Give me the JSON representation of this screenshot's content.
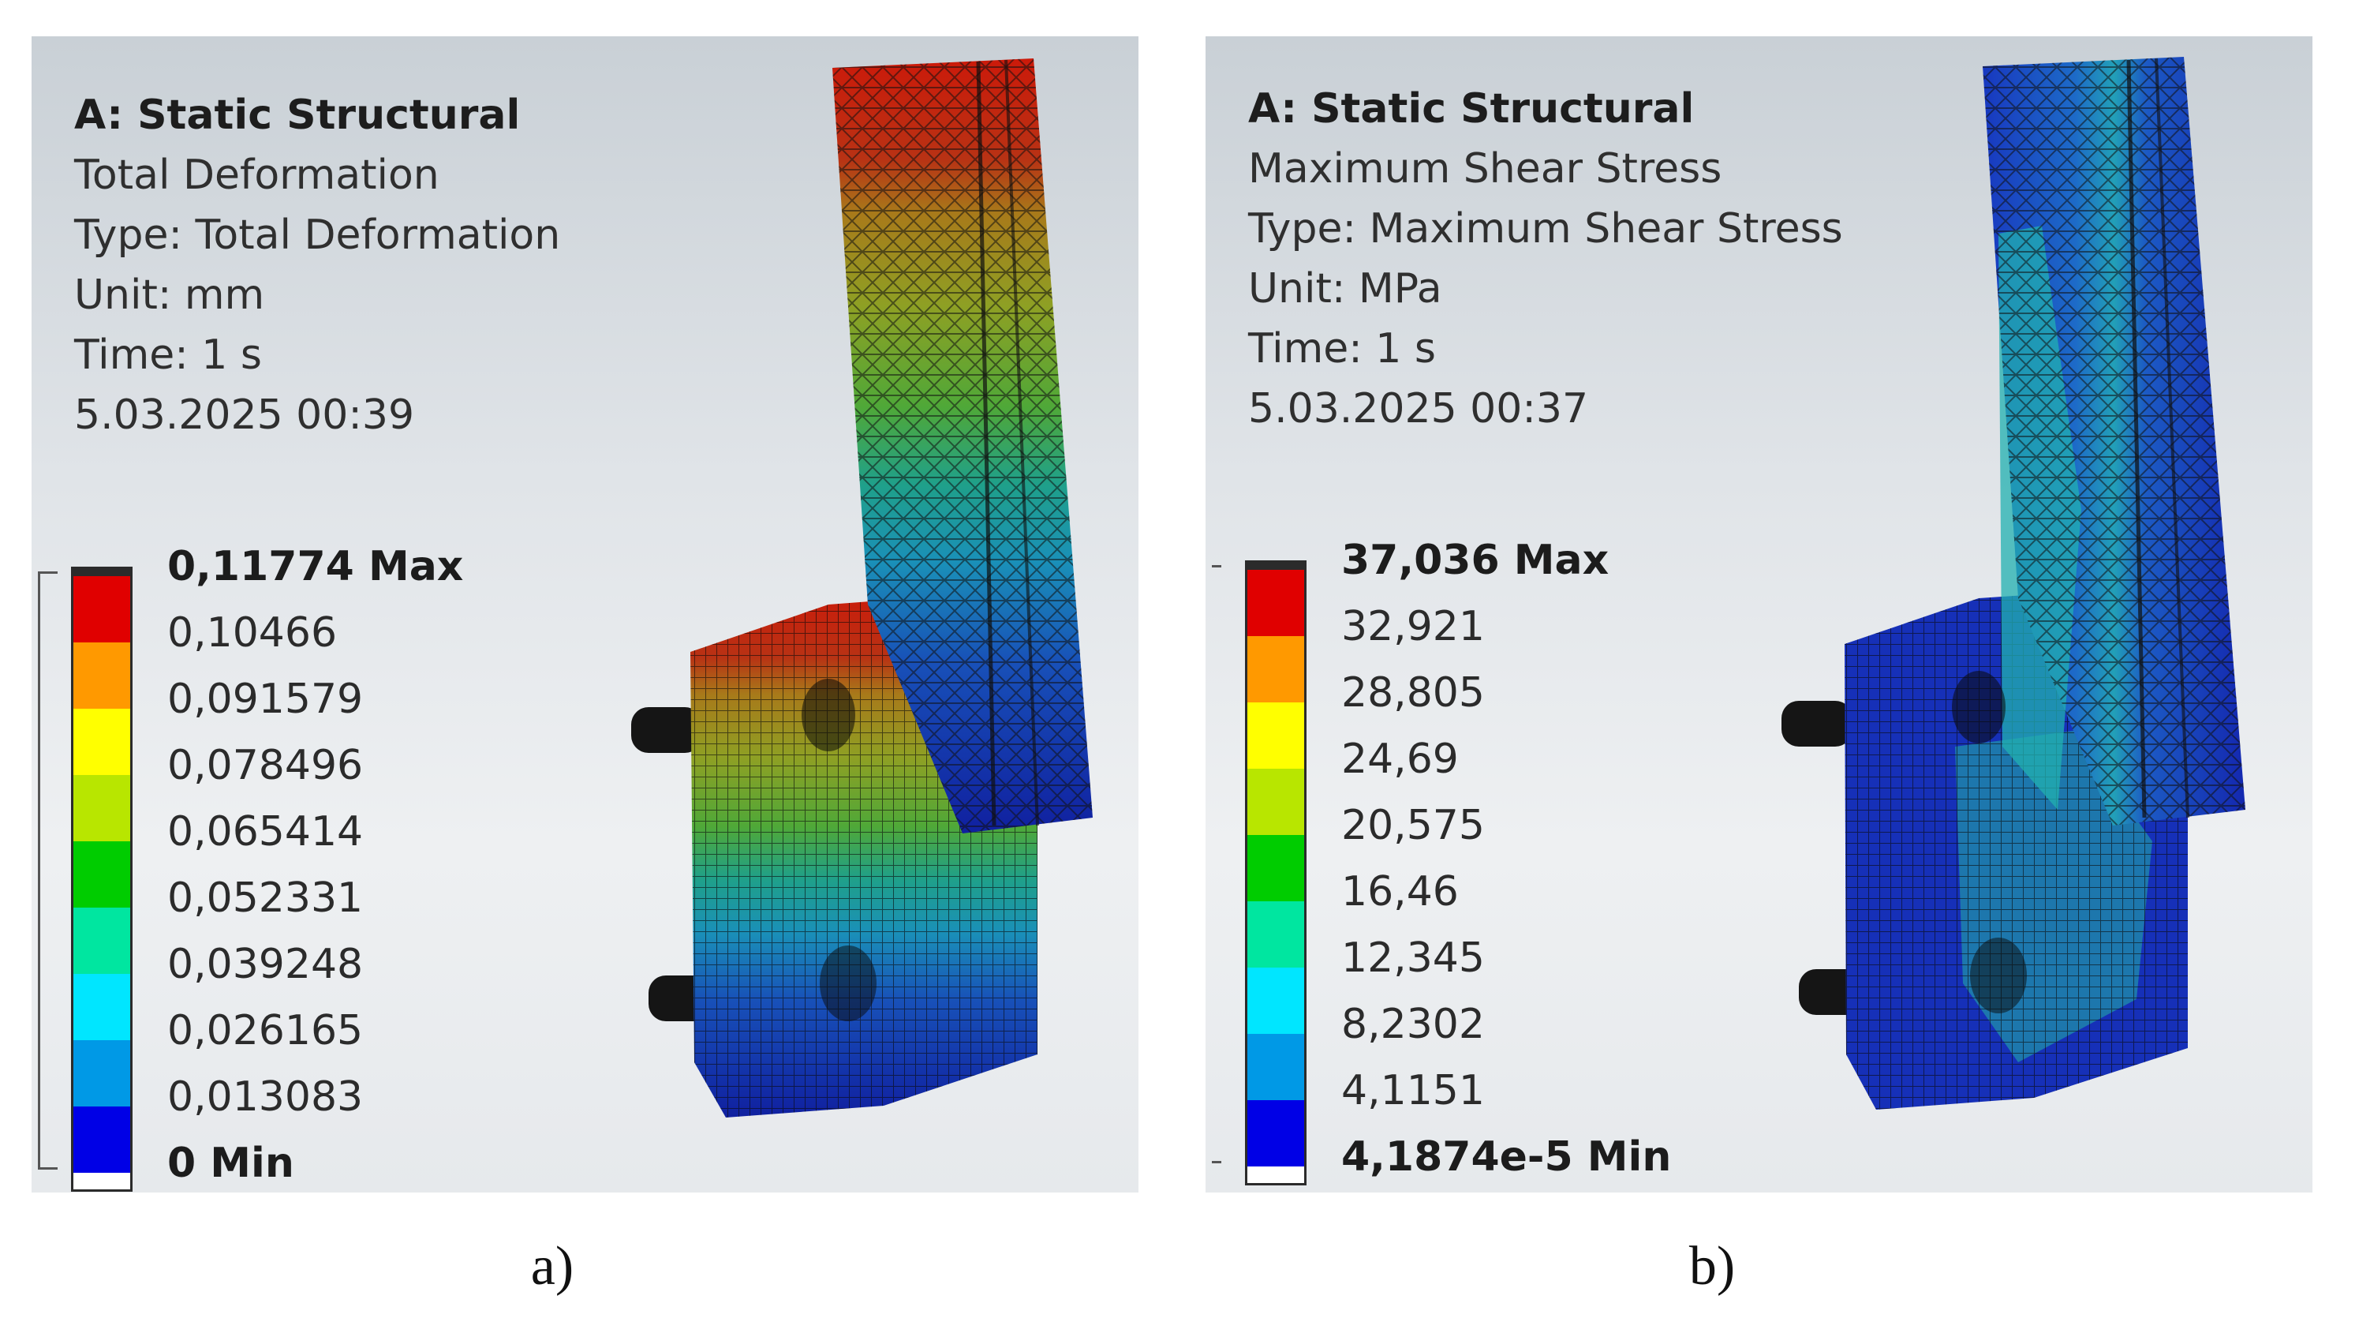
{
  "panels": [
    {
      "id": "a",
      "analysis": "A: Static Structural",
      "result": "Total Deformation",
      "type": "Type: Total Deformation",
      "unit": "Unit: mm",
      "time": "Time: 1 s",
      "timestamp": "5.03.2025 00:39",
      "legend": [
        "0,11774 Max",
        "0,10466",
        "0,091579",
        "0,078496",
        "0,065414",
        "0,052331",
        "0,039248",
        "0,026165",
        "0,013083",
        "0 Min"
      ],
      "caption": "a)"
    },
    {
      "id": "b",
      "analysis": "A: Static Structural",
      "result": "Maximum Shear Stress",
      "type": "Type: Maximum Shear Stress",
      "unit": "Unit: MPa",
      "time": "Time: 1 s",
      "timestamp": "5.03.2025 00:37",
      "legend": [
        "37,036 Max",
        "32,921",
        "28,805",
        "24,69",
        "20,575",
        "16,46",
        "12,345",
        "8,2302",
        "4,1151",
        "4,1874e-5 Min"
      ],
      "caption": "b)"
    }
  ],
  "colors": {
    "scale": [
      "#e00000",
      "#ff9900",
      "#ffff00",
      "#b8e600",
      "#00cc00",
      "#00e6a0",
      "#00e6ff",
      "#0099e6",
      "#0000e6"
    ],
    "background_top": "#c9d0d6",
    "background_bottom": "#eef0f2"
  }
}
